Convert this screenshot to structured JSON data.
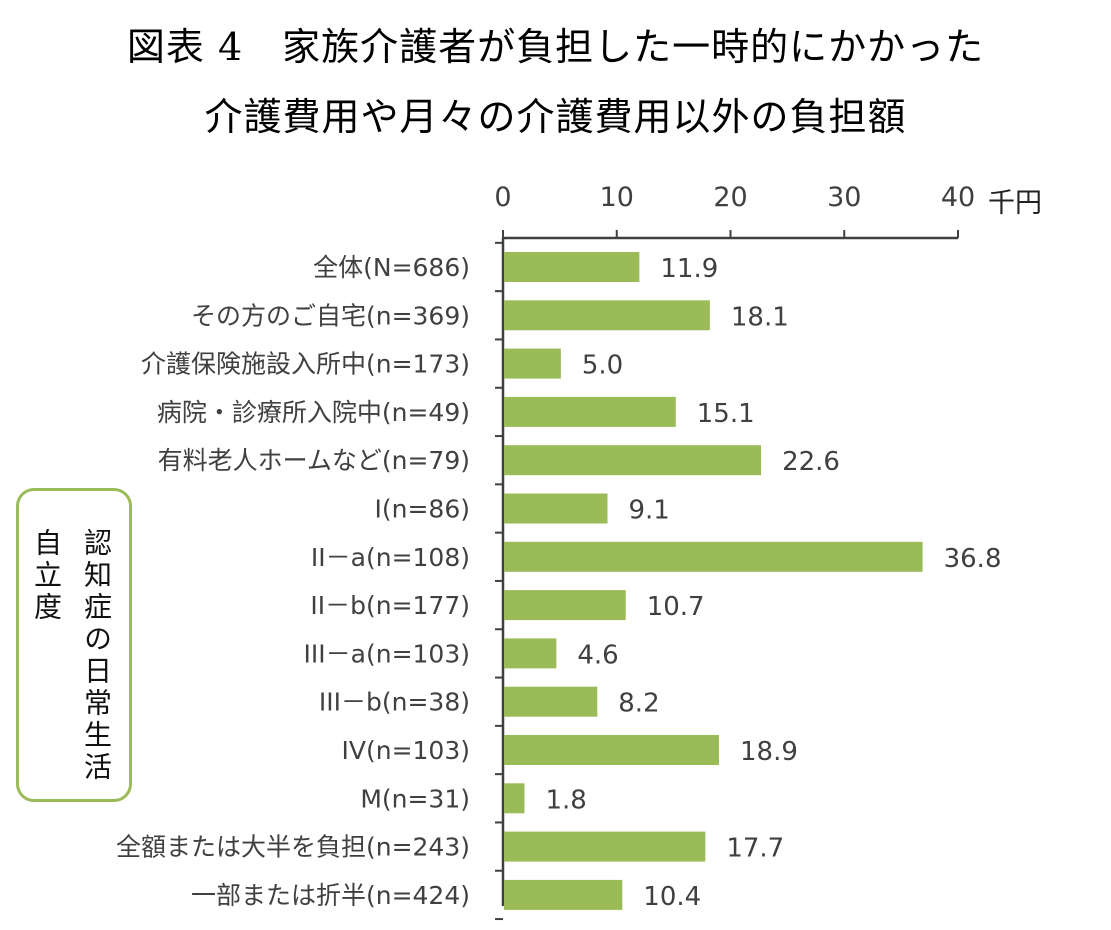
{
  "title_line1": "図表 4　家族介護者が負担した一時的にかかった",
  "title_line2": "介護費用や月々の介護費用以外の負担額",
  "group_label_col1": "自立度",
  "group_label_col2": "認知症の日常生活",
  "colors": {
    "bar": "#9bbb59",
    "axis": "#404040",
    "group_border": "#9bbb59"
  },
  "chart_data": {
    "type": "bar",
    "orientation": "horizontal",
    "unit": "千円",
    "xlim": [
      0,
      40
    ],
    "xticks": [
      0,
      10,
      20,
      30,
      40
    ],
    "grid": false,
    "categories": [
      "全体(N=686)",
      "その方のご自宅(n=369)",
      "介護保険施設入所中(n=173)",
      "病院・診療所入院中(n=49)",
      "有料老人ホームなど(n=79)",
      "I(n=86)",
      "II－a(n=108)",
      "II－b(n=177)",
      "III－a(n=103)",
      "III－b(n=38)",
      "IV(n=103)",
      "M(n=31)",
      "全額または大半を負担(n=243)",
      "一部または折半(n=424)"
    ],
    "values": [
      11.9,
      18.1,
      5.0,
      15.1,
      22.6,
      9.1,
      36.8,
      10.7,
      4.6,
      8.2,
      18.9,
      1.8,
      17.7,
      10.4
    ],
    "data_labels": [
      "11.9",
      "18.1",
      "5.0",
      "15.1",
      "22.6",
      "9.1",
      "36.8",
      "10.7",
      "4.6",
      "8.2",
      "18.9",
      "1.8",
      "17.7",
      "10.4"
    ]
  }
}
